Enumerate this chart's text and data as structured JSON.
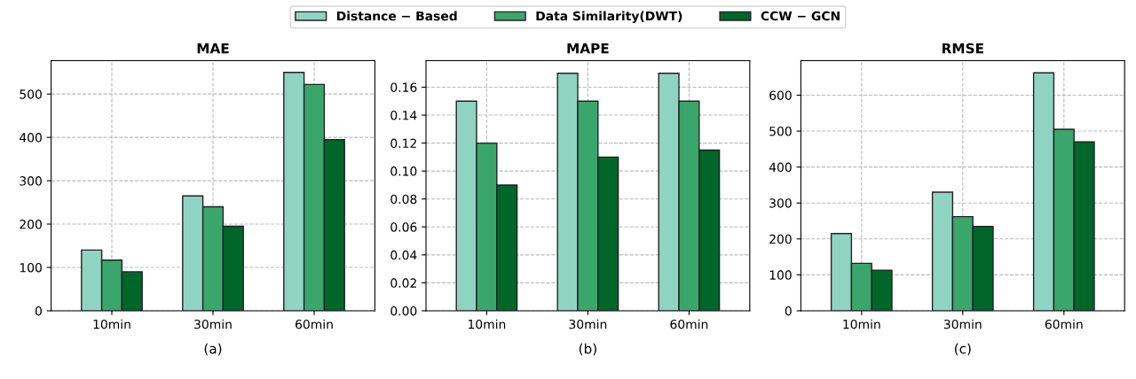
{
  "chart_data": [
    {
      "type": "bar",
      "title": "MAE",
      "categories": [
        "10min",
        "30min",
        "60min"
      ],
      "ylim": [
        0,
        577
      ],
      "yticks": [
        0,
        100,
        200,
        300,
        400,
        500
      ],
      "grid": true,
      "legend": "top",
      "annotations": [
        "(a)"
      ],
      "series": [
        {
          "name": "Distance − Based",
          "color": "#8fd4c1",
          "values": [
            140,
            265,
            550
          ]
        },
        {
          "name": "Data Similarity(DWT)",
          "color": "#3aa66b",
          "values": [
            117,
            240,
            522
          ]
        },
        {
          "name": "CCW − GCN",
          "color": "#00662a",
          "values": [
            90,
            195,
            395
          ]
        }
      ]
    },
    {
      "type": "bar",
      "title": "MAPE",
      "categories": [
        "10min",
        "30min",
        "60min"
      ],
      "ylim": [
        0,
        0.179
      ],
      "yticks": [
        {
          "value": 0,
          "label": "0.00"
        },
        {
          "value": 0.02,
          "label": "0.02"
        },
        {
          "value": 0.04,
          "label": "0.04"
        },
        {
          "value": 0.06,
          "label": "0.06"
        },
        {
          "value": 0.08,
          "label": "0.08"
        },
        {
          "value": 0.1,
          "label": "0.10"
        },
        {
          "value": 0.12,
          "label": "0.12"
        },
        {
          "value": 0.14,
          "label": "0.14"
        },
        {
          "value": 0.16,
          "label": "0.16"
        }
      ],
      "grid": true,
      "annotations": [
        "(b)"
      ],
      "series": [
        {
          "color": "#8fd4c1",
          "values": [
            0.15,
            0.17,
            0.17
          ]
        },
        {
          "color": "#3aa66b",
          "values": [
            0.12,
            0.15,
            0.15
          ]
        },
        {
          "color": "#00662a",
          "values": [
            0.09,
            0.11,
            0.115
          ]
        }
      ]
    },
    {
      "type": "bar",
      "title": "RMSE",
      "categories": [
        "10min",
        "30min",
        "60min"
      ],
      "ylim": [
        0,
        696
      ],
      "yticks": [
        0,
        100,
        200,
        300,
        400,
        500,
        600
      ],
      "grid": true,
      "annotations": [
        "(c)"
      ],
      "series": [
        {
          "color": "#8fd4c1",
          "values": [
            215,
            330,
            662
          ]
        },
        {
          "color": "#3aa66b",
          "values": [
            132,
            262,
            505
          ]
        },
        {
          "color": "#00662a",
          "values": [
            113,
            235,
            470
          ]
        }
      ]
    }
  ]
}
